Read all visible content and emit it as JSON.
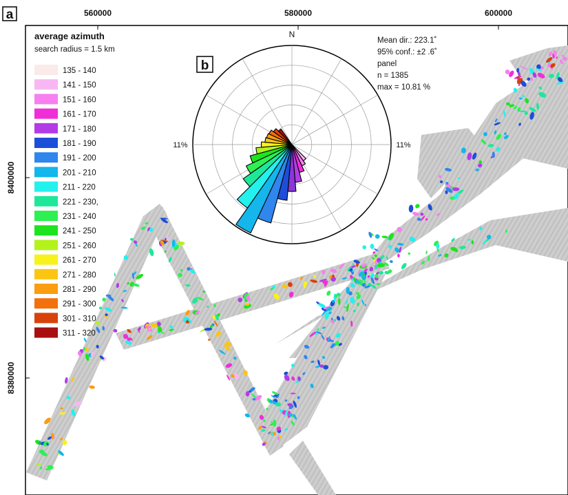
{
  "figure": {
    "panel_a_label": "a",
    "panel_b_label": "b"
  },
  "axes": {
    "x_ticks": [
      "560000",
      "580000",
      "600000"
    ],
    "y_ticks": [
      "8400000",
      "8380000"
    ]
  },
  "legend": {
    "title": "average azimuth",
    "subtitle": "search radius = 1.5 km",
    "items": [
      {
        "label": "135 - 140",
        "color": "#fbeaea"
      },
      {
        "label": "141 - 150",
        "color": "#f7b8f2"
      },
      {
        "label": "151 - 160",
        "color": "#f77ff0"
      },
      {
        "label": "161 - 170",
        "color": "#f02ed8"
      },
      {
        "label": "171 - 180",
        "color": "#b23be6"
      },
      {
        "label": "181 - 190",
        "color": "#1d4ed8"
      },
      {
        "label": "191 - 200",
        "color": "#2f86ec"
      },
      {
        "label": "201 - 210",
        "color": "#14b6ec"
      },
      {
        "label": "211 - 220",
        "color": "#22f1ee"
      },
      {
        "label": "221 - 230,",
        "color": "#1de89a"
      },
      {
        "label": "231 - 240",
        "color": "#2ef052"
      },
      {
        "label": "241 - 250",
        "color": "#1ee41e"
      },
      {
        "label": "251 - 260",
        "color": "#b4f21c"
      },
      {
        "label": "261 - 270",
        "color": "#f7f21c"
      },
      {
        "label": "271 - 280",
        "color": "#fbc612"
      },
      {
        "label": "281 - 290",
        "color": "#fb9d10"
      },
      {
        "label": "291 - 300",
        "color": "#f3700c"
      },
      {
        "label": "301 - 310",
        "color": "#d8420a"
      },
      {
        "label": "311 - 320",
        "color": "#a80f0f"
      }
    ]
  },
  "rose": {
    "north_label": "N",
    "left_label": "11%",
    "right_label": "11%",
    "stats": [
      "Mean dir.: 223.1˚",
      "95% conf.: ±2 .6˚",
      "panel",
      "n = 1385",
      "max = 10.81 %"
    ],
    "max_percent": 11,
    "ring_count": 5,
    "petals": [
      {
        "from": 135,
        "to": 145,
        "pct": 2.2,
        "color": "#f7b8f2"
      },
      {
        "from": 145,
        "to": 155,
        "pct": 2.6,
        "color": "#f77ff0"
      },
      {
        "from": 155,
        "to": 165,
        "pct": 3.2,
        "color": "#f02ed8"
      },
      {
        "from": 165,
        "to": 175,
        "pct": 4.2,
        "color": "#b23be6"
      },
      {
        "from": 175,
        "to": 185,
        "pct": 5.2,
        "color": "#8a36d8"
      },
      {
        "from": 185,
        "to": 195,
        "pct": 6.2,
        "color": "#1d4ed8"
      },
      {
        "from": 195,
        "to": 205,
        "pct": 9.0,
        "color": "#2f86ec"
      },
      {
        "from": 205,
        "to": 215,
        "pct": 10.81,
        "color": "#14b6ec"
      },
      {
        "from": 215,
        "to": 225,
        "pct": 8.6,
        "color": "#22f1ee"
      },
      {
        "from": 225,
        "to": 235,
        "pct": 6.6,
        "color": "#1de89a"
      },
      {
        "from": 235,
        "to": 245,
        "pct": 5.6,
        "color": "#2ef052"
      },
      {
        "from": 245,
        "to": 255,
        "pct": 4.8,
        "color": "#1ee41e"
      },
      {
        "from": 255,
        "to": 265,
        "pct": 4.0,
        "color": "#b4f21c"
      },
      {
        "from": 265,
        "to": 275,
        "pct": 3.4,
        "color": "#f7f21c"
      },
      {
        "from": 275,
        "to": 285,
        "pct": 3.0,
        "color": "#fbc612"
      },
      {
        "from": 285,
        "to": 295,
        "pct": 2.9,
        "color": "#fb9d10"
      },
      {
        "from": 295,
        "to": 305,
        "pct": 2.8,
        "color": "#f3700c"
      },
      {
        "from": 305,
        "to": 315,
        "pct": 2.5,
        "color": "#d8420a"
      },
      {
        "from": 315,
        "to": 325,
        "pct": 2.1,
        "color": "#a80f0f"
      }
    ]
  }
}
